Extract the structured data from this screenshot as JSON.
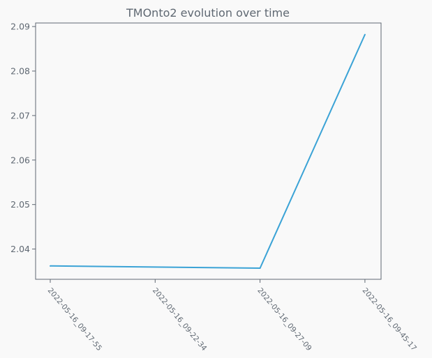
{
  "chart_data": {
    "type": "line",
    "title": "TMOnto2 evolution over time",
    "xlabel": "",
    "ylabel": "",
    "categories": [
      "2022-05-16_09-17-55",
      "2022-05-16_09-22-34",
      "2022-05-16_09-27-09",
      "2022-05-16_09-45-17"
    ],
    "x": [
      "2022-05-16_09-17-55",
      "2022-05-16_09-27-09",
      "2022-05-16_09-45-17"
    ],
    "series": [
      {
        "values": [
          2.0362,
          2.0357,
          2.0882
        ],
        "color": "#3ba3d6"
      }
    ],
    "yticks": [
      "2.04",
      "2.05",
      "2.06",
      "2.07",
      "2.08",
      "2.09"
    ],
    "ylim": [
      2.0332,
      2.0908
    ],
    "grid": false,
    "legend": "none"
  },
  "colors": {
    "background": "#f9f9f9",
    "axis": "#5f6872",
    "line": "#3ba3d6"
  }
}
